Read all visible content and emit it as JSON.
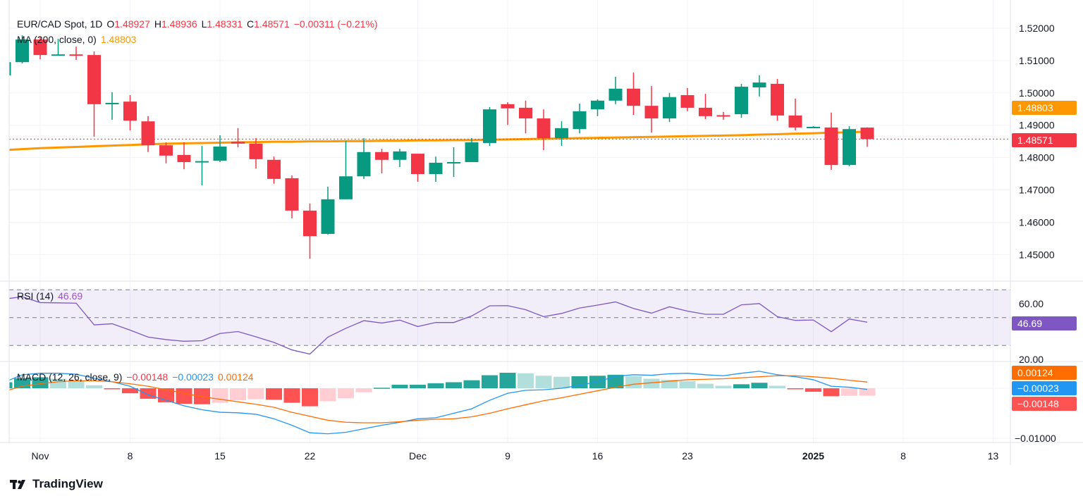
{
  "header": {
    "symbol": "EUR/CAD Spot, 1D",
    "o_label": "O",
    "o": "1.48927",
    "h_label": "H",
    "h": "1.48936",
    "l_label": "L",
    "l": "1.48331",
    "c_label": "C",
    "c": "1.48571",
    "change": "−0.00311 (−0.21%)"
  },
  "ma_legend": {
    "label": "MA (200, close, 0)",
    "value": "1.48803"
  },
  "rsi_legend": {
    "label": "RSI (14)",
    "value": "46.69"
  },
  "macd_legend": {
    "label": "MACD (12, 26, close, 9)",
    "hist": "−0.00148",
    "macd": "−0.00023",
    "signal": "0.00124"
  },
  "brand": "TradingView",
  "colors": {
    "up": "#089981",
    "down": "#f23645",
    "ma": "#ff9800",
    "rsi": "#7e57c2",
    "macd": "#2196f3",
    "signal": "#ff6d00",
    "hist_up_strong": "#26a69a",
    "hist_up_weak": "#b2dfdb",
    "hist_down_strong": "#ff5252",
    "hist_down_weak": "#ffcdd2"
  },
  "chart_data": {
    "type": "candlestick",
    "title": "EUR/CAD Spot, 1D",
    "price_axis": {
      "range": [
        1.4435,
        1.5245
      ],
      "ticks": [
        "1.52000",
        "1.51000",
        "1.50000",
        "1.49000",
        "1.48000",
        "1.47000",
        "1.46000",
        "1.45000"
      ],
      "tick_values": [
        1.52,
        1.51,
        1.5,
        1.49,
        1.48,
        1.47,
        1.46,
        1.45
      ]
    },
    "last_price": {
      "value": 1.48571,
      "label": "1.48571"
    },
    "ma_badge": {
      "value": 1.48803,
      "label": "1.48803"
    },
    "x_ticks": [
      {
        "label": "Nov",
        "bar": 2
      },
      {
        "label": "8",
        "bar": 7
      },
      {
        "label": "15",
        "bar": 12
      },
      {
        "label": "22",
        "bar": 17
      },
      {
        "label": "Dec",
        "bar": 23
      },
      {
        "label": "9",
        "bar": 28
      },
      {
        "label": "16",
        "bar": 33
      },
      {
        "label": "23",
        "bar": 38
      },
      {
        "label": "2025",
        "bar": 45,
        "bold": true
      },
      {
        "label": "8",
        "bar": 50
      },
      {
        "label": "13",
        "bar": 55
      }
    ],
    "ohlc": [
      [
        1.5054,
        1.5095,
        1.5054,
        1.5095
      ],
      [
        1.5095,
        1.5178,
        1.5091,
        1.5165
      ],
      [
        1.5165,
        1.5174,
        1.5104,
        1.5117
      ],
      [
        1.5118,
        1.5167,
        1.5117,
        1.5119
      ],
      [
        1.5119,
        1.5143,
        1.5102,
        1.5118
      ],
      [
        1.5117,
        1.5128,
        1.4864,
        1.4965
      ],
      [
        1.4967,
        1.5002,
        1.4917,
        1.4969
      ],
      [
        1.4973,
        1.4993,
        1.4884,
        1.4914
      ],
      [
        1.4912,
        1.4928,
        1.4817,
        1.4838
      ],
      [
        1.4838,
        1.4847,
        1.4782,
        1.4806
      ],
      [
        1.4808,
        1.4847,
        1.4764,
        1.4786
      ],
      [
        1.4788,
        1.4836,
        1.4714,
        1.4789
      ],
      [
        1.479,
        1.4869,
        1.4786,
        1.4834
      ],
      [
        1.4849,
        1.4891,
        1.4832,
        1.4843
      ],
      [
        1.4843,
        1.486,
        1.4766,
        1.4795
      ],
      [
        1.4793,
        1.4803,
        1.4719,
        1.4734
      ],
      [
        1.4736,
        1.4745,
        1.4612,
        1.4636
      ],
      [
        1.4636,
        1.4658,
        1.4487,
        1.4557
      ],
      [
        1.4564,
        1.471,
        1.4562,
        1.4671
      ],
      [
        1.4671,
        1.4851,
        1.4671,
        1.4742
      ],
      [
        1.4742,
        1.486,
        1.4734,
        1.4817
      ],
      [
        1.4817,
        1.4827,
        1.4751,
        1.4793
      ],
      [
        1.4793,
        1.4827,
        1.4771,
        1.4819
      ],
      [
        1.4812,
        1.4812,
        1.4725,
        1.4749
      ],
      [
        1.4749,
        1.4803,
        1.4725,
        1.4784
      ],
      [
        1.4785,
        1.4832,
        1.474,
        1.4786
      ],
      [
        1.4786,
        1.486,
        1.4786,
        1.4847
      ],
      [
        1.4845,
        1.4956,
        1.4836,
        1.4949
      ],
      [
        1.4965,
        1.4971,
        1.4901,
        1.4952
      ],
      [
        1.4954,
        1.4976,
        1.4875,
        1.4921
      ],
      [
        1.4921,
        1.4949,
        1.4823,
        1.486
      ],
      [
        1.486,
        1.4912,
        1.4836,
        1.4891
      ],
      [
        1.4888,
        1.4967,
        1.4875,
        1.4943
      ],
      [
        1.4949,
        1.498,
        1.4928,
        1.4976
      ],
      [
        1.4976,
        1.505,
        1.4965,
        1.5013
      ],
      [
        1.5013,
        1.5063,
        1.4932,
        1.496
      ],
      [
        1.496,
        1.5021,
        1.4877,
        1.4921
      ],
      [
        1.4921,
        1.5,
        1.491,
        1.4987
      ],
      [
        1.4993,
        1.5015,
        1.4943,
        1.4954
      ],
      [
        1.4954,
        1.4997,
        1.4919,
        1.4928
      ],
      [
        1.4931,
        1.4941,
        1.4917,
        1.493
      ],
      [
        1.4934,
        1.5028,
        1.4923,
        1.5019
      ],
      [
        1.5017,
        1.5054,
        1.4989,
        1.5032
      ],
      [
        1.5028,
        1.5043,
        1.4914,
        1.493
      ],
      [
        1.493,
        1.4982,
        1.4884,
        1.4893
      ],
      [
        1.4893,
        1.4897,
        1.4891,
        1.4895
      ],
      [
        1.4893,
        1.4939,
        1.4762,
        1.4777
      ],
      [
        1.4777,
        1.4897,
        1.4773,
        1.4888
      ],
      [
        1.48927,
        1.48936,
        1.48331,
        1.48571
      ]
    ],
    "ma200": [
      1.4823,
      1.4826,
      1.4829,
      1.4831,
      1.4833,
      1.4835,
      1.4837,
      1.4839,
      1.4841,
      1.4843,
      1.4844,
      1.4845,
      1.4846,
      1.4847,
      1.4848,
      1.4849,
      1.4849,
      1.485,
      1.485,
      1.4851,
      1.4851,
      1.4852,
      1.4852,
      1.4853,
      1.4853,
      1.4854,
      1.4854,
      1.4855,
      1.4856,
      1.4857,
      1.4858,
      1.4859,
      1.486,
      1.4861,
      1.4862,
      1.4863,
      1.4864,
      1.4865,
      1.4866,
      1.4867,
      1.4868,
      1.4869,
      1.4871,
      1.4872,
      1.4874,
      1.4875,
      1.4877,
      1.4878,
      1.488
    ],
    "rsi": {
      "ticks": [
        "60.00",
        "20.00"
      ],
      "tick_values": [
        60,
        20
      ],
      "bands": [
        70,
        50,
        30
      ],
      "values": [
        63.3,
        65,
        60.8,
        60.6,
        60.4,
        44.8,
        45.6,
        41,
        36,
        34.2,
        33,
        33.4,
        38.6,
        40,
        36.2,
        32.2,
        26.8,
        23.8,
        36,
        42.3,
        47.8,
        46.1,
        48.2,
        43.6,
        46.5,
        46.5,
        51.2,
        58.5,
        58.6,
        55.7,
        50.7,
        53,
        56.9,
        59,
        61.3,
        56.6,
        53.2,
        57.8,
        54.7,
        52.4,
        52.4,
        59.2,
        60.1,
        50.7,
        48,
        48.3,
        39.9,
        49,
        46.69
      ]
    },
    "macd": {
      "ticks": [
        "−0.01000"
      ],
      "tick_values": [
        -0.01
      ],
      "macd": [
        0.0012,
        0.0027,
        0.003,
        0.003,
        0.0028,
        0.002,
        0.0013,
        0.0004,
        -0.0013,
        -0.0024,
        -0.0035,
        -0.0043,
        -0.0048,
        -0.0049,
        -0.0052,
        -0.0061,
        -0.0074,
        -0.0089,
        -0.0091,
        -0.0088,
        -0.0081,
        -0.0074,
        -0.0068,
        -0.0061,
        -0.0059,
        -0.005,
        -0.0041,
        -0.0024,
        -0.001,
        -0.0004,
        -0.0003,
        0.0,
        0.0006,
        0.0013,
        0.0024,
        0.0027,
        0.0026,
        0.0029,
        0.003,
        0.0027,
        0.0025,
        0.003,
        0.0034,
        0.0027,
        0.0023,
        0.0017,
        0.0004,
        0.0002,
        -0.00023
      ],
      "signal": [
        -0.0006,
        0.0004,
        0.0009,
        0.0013,
        0.0015,
        0.0015,
        0.0013,
        0.0009,
        0.0004,
        -0.0003,
        -0.001,
        -0.0017,
        -0.0022,
        -0.0027,
        -0.0032,
        -0.0038,
        -0.0048,
        -0.0056,
        -0.0064,
        -0.0068,
        -0.0069,
        -0.0069,
        -0.0067,
        -0.0064,
        -0.0062,
        -0.0061,
        -0.0057,
        -0.005,
        -0.0041,
        -0.0033,
        -0.0025,
        -0.0019,
        -0.0012,
        -0.0005,
        0.0002,
        0.0008,
        0.0011,
        0.0014,
        0.0017,
        0.0018,
        0.0019,
        0.0021,
        0.0023,
        0.0025,
        0.0025,
        0.0023,
        0.002,
        0.0016,
        0.00124
      ],
      "histogram": [
        0.0012,
        0.002,
        0.0022,
        0.0019,
        0.0016,
        0.0006,
        -0.0002,
        -0.001,
        -0.0021,
        -0.0028,
        -0.0031,
        -0.0032,
        -0.0029,
        -0.0024,
        -0.0022,
        -0.0023,
        -0.0029,
        -0.0036,
        -0.0026,
        -0.002,
        -0.0008,
        0.0001,
        0.0007,
        0.0007,
        0.001,
        0.0012,
        0.0016,
        0.0026,
        0.0031,
        0.003,
        0.0025,
        0.0023,
        0.0024,
        0.0025,
        0.0027,
        0.0024,
        0.0019,
        0.0017,
        0.0014,
        0.0009,
        0.0005,
        0.0008,
        0.0011,
        0.0005,
        -0.0002,
        -0.0007,
        -0.0016,
        -0.0015,
        -0.00148
      ],
      "badges": [
        {
          "label": "0.00124",
          "series": "signal"
        },
        {
          "label": "−0.00023",
          "series": "macd"
        },
        {
          "label": "−0.00148",
          "series": "histogram"
        }
      ]
    }
  }
}
